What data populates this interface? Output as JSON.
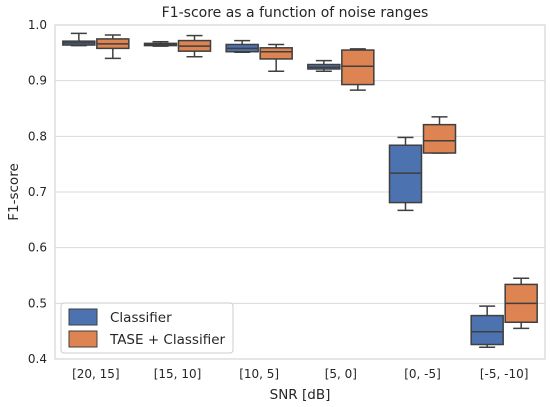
{
  "chart_data": {
    "type": "box",
    "title": "F1-score as a function of noise ranges",
    "xlabel": "SNR [dB]",
    "ylabel": "F1-score",
    "ylim": [
      0.4,
      1.0
    ],
    "yticks": [
      "0.4",
      "0.5",
      "0.6",
      "0.7",
      "0.8",
      "0.9",
      "1.0"
    ],
    "categories": [
      "[20, 15]",
      "[15, 10]",
      "[10, 5]",
      "[5, 0]",
      "[0, -5]",
      "[-5, -10]"
    ],
    "grid": "horizontal",
    "legend_position": "bottom-left",
    "series": [
      {
        "name": "Classifier",
        "color": "#4c72b0",
        "boxes": [
          {
            "whisker_low": 0.963,
            "q1": 0.964,
            "median": 0.968,
            "q3": 0.971,
            "whisker_high": 0.985
          },
          {
            "whisker_low": 0.962,
            "q1": 0.963,
            "median": 0.965,
            "q3": 0.967,
            "whisker_high": 0.97
          },
          {
            "whisker_low": 0.951,
            "q1": 0.952,
            "median": 0.958,
            "q3": 0.965,
            "whisker_high": 0.972
          },
          {
            "whisker_low": 0.917,
            "q1": 0.921,
            "median": 0.924,
            "q3": 0.929,
            "whisker_high": 0.936
          },
          {
            "whisker_low": 0.667,
            "q1": 0.681,
            "median": 0.734,
            "q3": 0.784,
            "whisker_high": 0.798
          },
          {
            "whisker_low": 0.421,
            "q1": 0.426,
            "median": 0.449,
            "q3": 0.478,
            "whisker_high": 0.495
          }
        ]
      },
      {
        "name": "TASE + Classifier",
        "color": "#dd8452",
        "boxes": [
          {
            "whisker_low": 0.94,
            "q1": 0.958,
            "median": 0.966,
            "q3": 0.975,
            "whisker_high": 0.982
          },
          {
            "whisker_low": 0.943,
            "q1": 0.953,
            "median": 0.962,
            "q3": 0.972,
            "whisker_high": 0.981
          },
          {
            "whisker_low": 0.917,
            "q1": 0.939,
            "median": 0.952,
            "q3": 0.959,
            "whisker_high": 0.965
          },
          {
            "whisker_low": 0.883,
            "q1": 0.893,
            "median": 0.926,
            "q3": 0.955,
            "whisker_high": 0.957
          },
          {
            "whisker_low": 0.77,
            "q1": 0.77,
            "median": 0.792,
            "q3": 0.821,
            "whisker_high": 0.835
          },
          {
            "whisker_low": 0.455,
            "q1": 0.466,
            "median": 0.5,
            "q3": 0.534,
            "whisker_high": 0.545
          }
        ]
      }
    ]
  }
}
